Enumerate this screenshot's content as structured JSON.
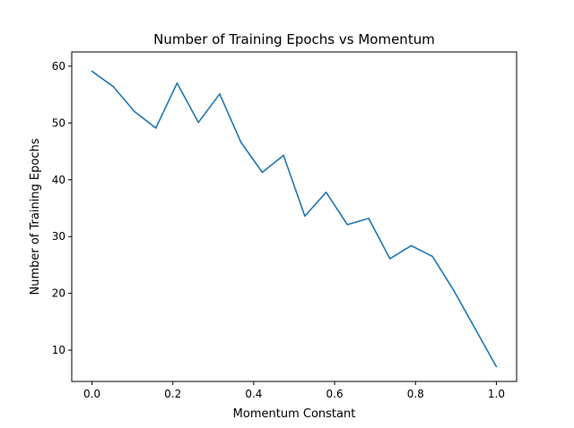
{
  "chart_data": {
    "type": "line",
    "title": "Number of Training Epochs vs Momentum",
    "xlabel": "Momentum Constant",
    "ylabel": "Number of Training Epochs",
    "xlim": [
      -0.05,
      1.05
    ],
    "ylim": [
      4.5,
      62.5
    ],
    "xticks": [
      0.0,
      0.2,
      0.4,
      0.6,
      0.8,
      1.0
    ],
    "xtick_labels": [
      "0.0",
      "0.2",
      "0.4",
      "0.6",
      "0.8",
      "1.0"
    ],
    "yticks": [
      10,
      20,
      30,
      40,
      50,
      60
    ],
    "ytick_labels": [
      "10",
      "20",
      "30",
      "40",
      "50",
      "60"
    ],
    "grid": false,
    "legend": "none",
    "series": [
      {
        "color": "#1f77b4",
        "x": [
          0.0,
          0.0526,
          0.1053,
          0.1579,
          0.2105,
          0.2632,
          0.3158,
          0.3684,
          0.4211,
          0.4737,
          0.5263,
          0.5789,
          0.6316,
          0.6842,
          0.7368,
          0.7895,
          0.8421,
          0.8947,
          0.9474,
          1.0
        ],
        "y": [
          59.1,
          56.4,
          52.0,
          49.1,
          57.0,
          50.1,
          55.1,
          46.6,
          41.3,
          44.3,
          33.6,
          37.8,
          32.1,
          33.2,
          26.1,
          28.4,
          26.5,
          20.5,
          13.8,
          7.1
        ]
      }
    ]
  }
}
